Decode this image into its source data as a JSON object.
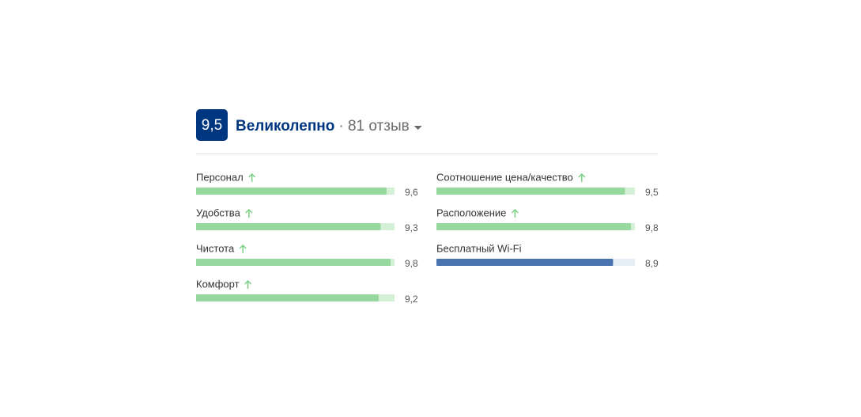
{
  "header": {
    "score": "9,5",
    "rating": "Великолепно",
    "reviews": "· 81 отзыв"
  },
  "xlim": [
    0,
    10
  ],
  "columns": [
    [
      {
        "label": "Персонал",
        "score": {
          "value": 9.6,
          "label": "9,6"
        },
        "arrow": true,
        "color": "#97d89e",
        "track": "#d4f0d6"
      },
      {
        "label": "Удобства",
        "score": {
          "value": 9.3,
          "label": "9,3"
        },
        "arrow": true,
        "color": "#97d89e",
        "track": "#d4f0d6"
      },
      {
        "label": "Чистота",
        "score": {
          "value": 9.8,
          "label": "9,8"
        },
        "arrow": true,
        "color": "#97d89e",
        "track": "#d4f0d6"
      },
      {
        "label": "Комфорт",
        "score": {
          "value": 9.2,
          "label": "9,2"
        },
        "arrow": true,
        "color": "#97d89e",
        "track": "#d4f0d6"
      }
    ],
    [
      {
        "label": "Соотношение цена/качество",
        "score": {
          "value": 9.5,
          "label": "9,5"
        },
        "arrow": true,
        "color": "#97d89e",
        "track": "#d4f0d6"
      },
      {
        "label": "Расположение",
        "score": {
          "value": 9.8,
          "label": "9,8"
        },
        "arrow": true,
        "color": "#97d89e",
        "track": "#d4f0d6"
      },
      {
        "label": "Бесплатный Wi-Fi",
        "score": {
          "value": 8.9,
          "label": "8,9"
        },
        "arrow": false,
        "color": "#4a74b0",
        "track": "#e6eef8"
      }
    ]
  ]
}
